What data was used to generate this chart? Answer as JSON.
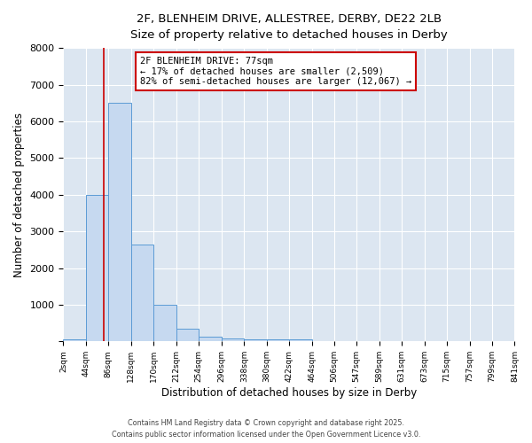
{
  "title_line1": "2F, BLENHEIM DRIVE, ALLESTREE, DERBY, DE22 2LB",
  "title_line2": "Size of property relative to detached houses in Derby",
  "xlabel": "Distribution of detached houses by size in Derby",
  "ylabel": "Number of detached properties",
  "bar_color": "#c6d9f0",
  "bar_edge_color": "#5b9bd5",
  "bin_edges": [
    2,
    44,
    86,
    128,
    170,
    212,
    254,
    296,
    338,
    380,
    422,
    464,
    506,
    547,
    589,
    631,
    673,
    715,
    757,
    799,
    841
  ],
  "bar_heights": [
    50,
    4000,
    6500,
    2650,
    1000,
    350,
    130,
    75,
    50,
    50,
    50,
    0,
    0,
    0,
    0,
    0,
    0,
    0,
    0,
    0
  ],
  "tick_labels": [
    "2sqm",
    "44sqm",
    "86sqm",
    "128sqm",
    "170sqm",
    "212sqm",
    "254sqm",
    "296sqm",
    "338sqm",
    "380sqm",
    "422sqm",
    "464sqm",
    "506sqm",
    "547sqm",
    "589sqm",
    "631sqm",
    "673sqm",
    "715sqm",
    "757sqm",
    "799sqm",
    "841sqm"
  ],
  "property_size": 77,
  "red_line_color": "#cc0000",
  "annotation_text": "2F BLENHEIM DRIVE: 77sqm\n← 17% of detached houses are smaller (2,509)\n82% of semi-detached houses are larger (12,067) →",
  "annotation_box_color": "#cc0000",
  "ylim": [
    0,
    8000
  ],
  "yticks": [
    0,
    1000,
    2000,
    3000,
    4000,
    5000,
    6000,
    7000,
    8000
  ],
  "grid_color": "#ffffff",
  "bg_color": "#dce6f1",
  "footnote1": "Contains HM Land Registry data © Crown copyright and database right 2025.",
  "footnote2": "Contains public sector information licensed under the Open Government Licence v3.0.",
  "fig_bg_color": "#ffffff"
}
